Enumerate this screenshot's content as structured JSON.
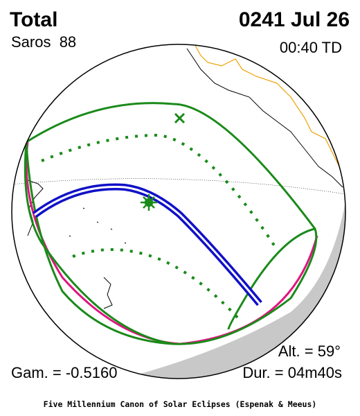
{
  "header": {
    "type_label": "Total",
    "date": "0241 Jul 26",
    "saros": "Saros  88",
    "time": "00:40 TD"
  },
  "footer": {
    "altitude": "Alt. = 59°",
    "gamma": "Gam. = -0.5160",
    "duration": "Dur. = 04m40s",
    "credit": "Five Millennium Canon of Solar Eclipses (Espenak & Meeus)"
  }
}
